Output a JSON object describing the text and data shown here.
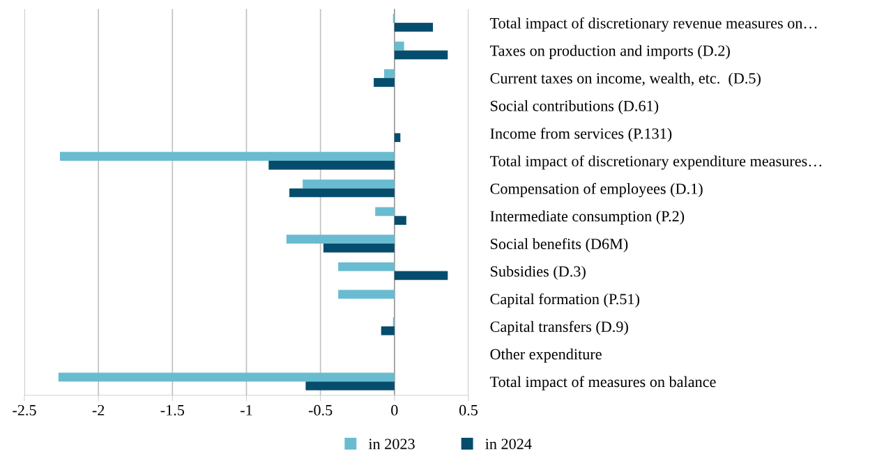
{
  "chart_data": {
    "type": "bar",
    "orientation": "horizontal",
    "categories": [
      "Total impact of discretionary revenue measures on…",
      "Taxes on production and imports (D.2)",
      "Current taxes on income, wealth, etc.  (D.5)",
      "Social contributions (D.61)",
      "Income from services (P.131)",
      "Total impact of discretionary expenditure measures…",
      "Compensation of employees (D.1)",
      "Intermediate consumption (P.2)",
      "Social benefits (D6M)",
      "Subsidies (D.3)",
      "Capital formation (P.51)",
      "Capital transfers (D.9)",
      "Other expenditure",
      "Total impact of measures on balance"
    ],
    "series": [
      {
        "name": "in 2023",
        "color": "#69bcd0",
        "values": [
          -0.01,
          0.065,
          -0.07,
          null,
          null,
          -2.26,
          -0.62,
          -0.13,
          -0.73,
          -0.38,
          -0.38,
          -0.01,
          null,
          -2.27
        ]
      },
      {
        "name": "in 2024",
        "color": "#064d6d",
        "values": [
          0.26,
          0.36,
          -0.14,
          null,
          0.04,
          -0.85,
          -0.71,
          0.08,
          -0.48,
          0.36,
          null,
          -0.09,
          null,
          -0.6
        ]
      }
    ],
    "xlim": [
      -2.5,
      0.5
    ],
    "xticks": [
      -2.5,
      -2,
      -1.5,
      -1,
      -0.5,
      0,
      0.5
    ],
    "grid": "x",
    "legend": "bottom"
  }
}
